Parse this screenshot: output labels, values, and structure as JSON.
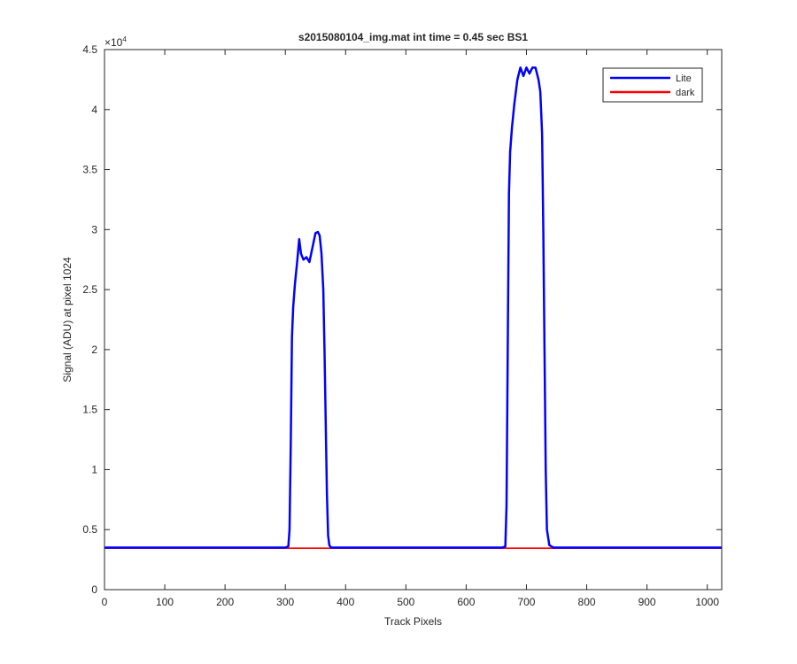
{
  "chart_data": {
    "type": "line",
    "title": "s2015080104_img.mat int time = 0.45 sec   BS1",
    "xlabel": "Track Pixels",
    "ylabel": "Signal (ADU) at pixel 1024",
    "xlim": [
      0,
      1024
    ],
    "ylim": [
      0,
      45000
    ],
    "x_ticks": [
      0,
      100,
      200,
      300,
      400,
      500,
      600,
      700,
      800,
      900,
      1000
    ],
    "y_ticks": [
      0,
      0.5,
      1,
      1.5,
      2,
      2.5,
      3,
      3.5,
      4,
      4.5
    ],
    "y_multiplier_base": "×10",
    "y_multiplier_exp": "4",
    "grid": false,
    "legend_position": "top-right",
    "series": [
      {
        "name": "Lite",
        "color": "#0000ff",
        "x": [
          0,
          300,
          305,
          307,
          309,
          311,
          313,
          316,
          320,
          323,
          326,
          330,
          335,
          340,
          345,
          350,
          354,
          357,
          360,
          363,
          365,
          367,
          369,
          371,
          373,
          376,
          380,
          500,
          600,
          660,
          665,
          667,
          669,
          671,
          673,
          676,
          680,
          685,
          690,
          695,
          700,
          705,
          710,
          715,
          720,
          723,
          726,
          728,
          730,
          732,
          734,
          738,
          745,
          800,
          900,
          1024
        ],
        "values": [
          3500,
          3500,
          3600,
          5000,
          12000,
          21000,
          23500,
          25500,
          27500,
          29200,
          28000,
          27500,
          27700,
          27300,
          28500,
          29700,
          29800,
          29500,
          28000,
          25000,
          20000,
          14000,
          8000,
          4500,
          3700,
          3500,
          3500,
          3500,
          3500,
          3500,
          3600,
          7000,
          20000,
          33000,
          36500,
          38500,
          40500,
          42500,
          43500,
          42800,
          43500,
          43000,
          43500,
          43500,
          42500,
          41500,
          38000,
          30000,
          20000,
          10000,
          5000,
          3700,
          3500,
          3500,
          3500,
          3500
        ]
      },
      {
        "name": "dark",
        "color": "#ff0000",
        "x": [
          0,
          1024
        ],
        "values": [
          3450,
          3450
        ]
      }
    ]
  }
}
